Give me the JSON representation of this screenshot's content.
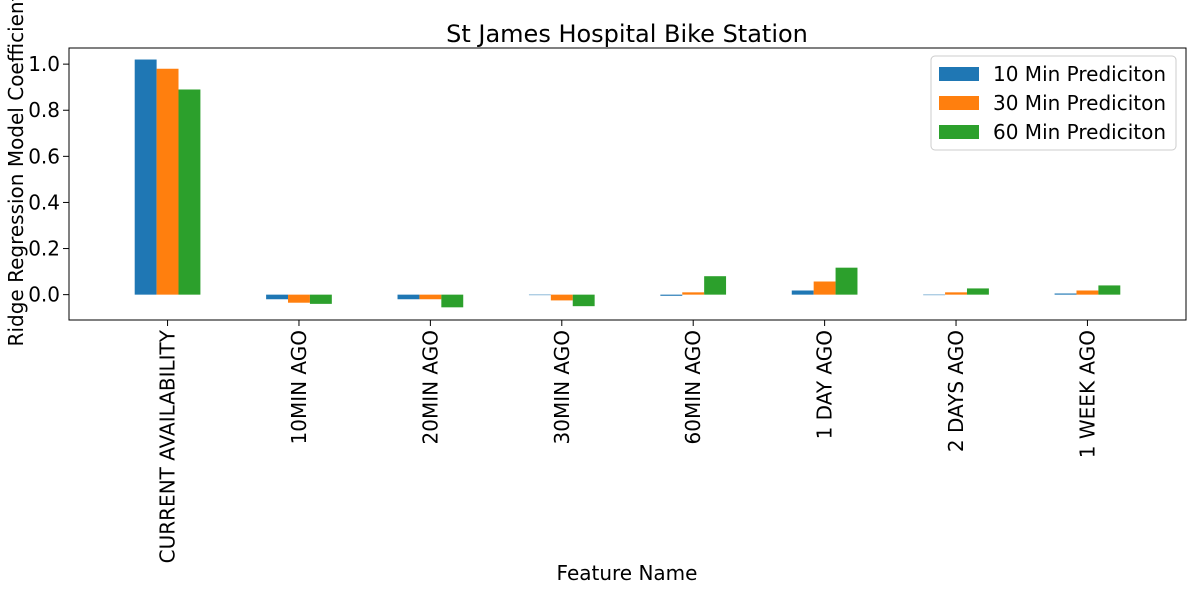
{
  "chart_data": {
    "type": "bar",
    "title": "St James Hospital Bike Station",
    "xlabel": "Feature Name",
    "ylabel": "Ridge Regression Model Coefficient",
    "categories": [
      "CURRENT AVAILABILITY",
      "10MIN AGO",
      "20MIN AGO",
      "30MIN AGO",
      "60MIN AGO",
      "1 DAY AGO",
      "2 DAYS AGO",
      "1 WEEK AGO"
    ],
    "series": [
      {
        "name": "10 Min Prediciton",
        "color": "#1f77b4",
        "values": [
          1.02,
          -0.02,
          -0.02,
          0.0,
          -0.005,
          0.018,
          0.0,
          0.005
        ]
      },
      {
        "name": "30 Min Prediciton",
        "color": "#ff7f0e",
        "values": [
          0.98,
          -0.035,
          -0.02,
          -0.025,
          0.01,
          0.057,
          0.01,
          0.018
        ]
      },
      {
        "name": "60 Min Prediciton",
        "color": "#2ca02c",
        "values": [
          0.89,
          -0.04,
          -0.055,
          -0.05,
          0.08,
          0.117,
          0.027,
          0.04
        ]
      }
    ],
    "ylim": [
      -0.11,
      1.07
    ],
    "yticks": [
      0.0,
      0.2,
      0.4,
      0.6,
      0.8,
      1.0
    ],
    "ytick_labels": [
      "0.0",
      "0.2",
      "0.4",
      "0.6",
      "0.8",
      "1.0"
    ],
    "grid": false,
    "legend_position": "upper right"
  }
}
